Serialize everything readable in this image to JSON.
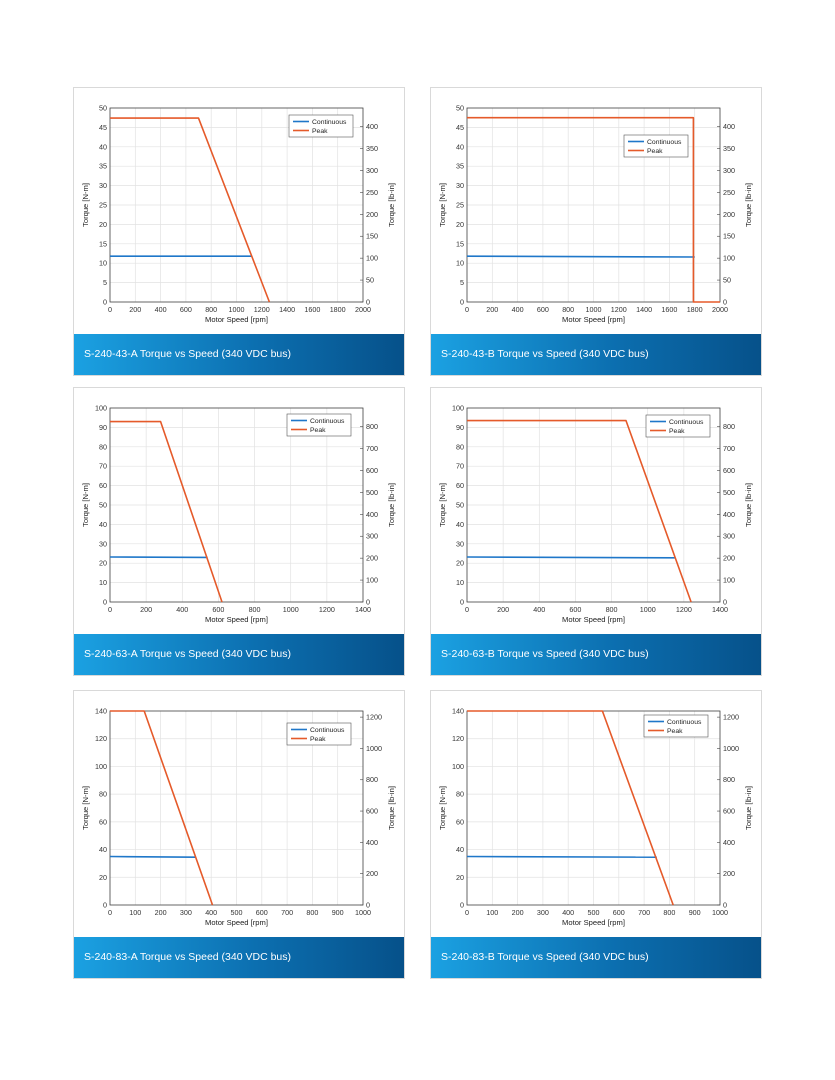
{
  "style": {
    "continuous_color": "#1f77c9",
    "peak_color": "#e55a2a",
    "grid_color": "#e2e2e2",
    "banner_from": "#1ba1e2",
    "banner_to": "#06518a"
  },
  "chart_data": [
    {
      "type": "line",
      "caption": "S-240-43-A Torque vs Speed (340 VDC bus)",
      "xlabel": "Motor Speed [rpm]",
      "ylabel": "Torque [N-m]",
      "y2label": "Torque [lb-in]",
      "xlim": [
        0,
        2000
      ],
      "xticks": [
        0,
        200,
        400,
        600,
        800,
        1000,
        1200,
        1400,
        1600,
        1800,
        2000
      ],
      "ylim": [
        0,
        50
      ],
      "yticks": [
        0,
        5,
        10,
        15,
        20,
        25,
        30,
        35,
        40,
        45,
        50
      ],
      "y2ticks": [
        0,
        50,
        100,
        150,
        200,
        250,
        300,
        350,
        400
      ],
      "y2ticklabels": [
        "0",
        "50",
        "100",
        "150",
        "200",
        "250",
        "300",
        "350",
        "400"
      ],
      "legend": "top-right",
      "grid": true,
      "series": [
        {
          "name": "Continuous",
          "x": [
            0,
            1120
          ],
          "y": [
            11.8,
            11.8
          ]
        },
        {
          "name": "Peak",
          "x": [
            0,
            700,
            1260
          ],
          "y": [
            47.4,
            47.4,
            0
          ]
        }
      ]
    },
    {
      "type": "line",
      "caption": "S-240-43-B Torque vs Speed (340 VDC bus)",
      "xlabel": "Motor Speed [rpm]",
      "ylabel": "Torque [N-m]",
      "y2label": "Torque [lb-in]",
      "xlim": [
        0,
        2000
      ],
      "xticks": [
        0,
        200,
        400,
        600,
        800,
        1000,
        1200,
        1400,
        1600,
        1800,
        2000
      ],
      "ylim": [
        0,
        50
      ],
      "yticks": [
        0,
        5,
        10,
        15,
        20,
        25,
        30,
        35,
        40,
        45,
        50
      ],
      "y2ticks": [
        0,
        50,
        100,
        150,
        200,
        250,
        300,
        350,
        400
      ],
      "y2ticklabels": [
        "0",
        "50",
        "100",
        "150",
        "200",
        "250",
        "300",
        "350",
        "400"
      ],
      "legend": "upper-right",
      "grid": true,
      "series": [
        {
          "name": "Continuous",
          "x": [
            0,
            1800
          ],
          "y": [
            11.8,
            11.6
          ]
        },
        {
          "name": "Peak",
          "x": [
            0,
            1790,
            1790,
            2000
          ],
          "y": [
            47.5,
            47.5,
            0,
            0
          ]
        }
      ]
    },
    {
      "type": "line",
      "caption": "S-240-63-A Torque vs Speed (340 VDC bus)",
      "xlabel": "Motor Speed [rpm]",
      "ylabel": "Torque [N-m]",
      "y2label": "Torque [lb-in]",
      "xlim": [
        0,
        1400
      ],
      "xticks": [
        0,
        200,
        400,
        600,
        800,
        1000,
        1200,
        1400
      ],
      "ylim": [
        0,
        100
      ],
      "yticks": [
        0,
        10,
        20,
        30,
        40,
        50,
        60,
        70,
        80,
        90,
        100
      ],
      "y2ticks": [
        0,
        100,
        200,
        300,
        400,
        500,
        600,
        700,
        800
      ],
      "y2ticklabels": [
        "0",
        "100",
        "200",
        "300",
        "400",
        "500",
        "600",
        "700",
        "800"
      ],
      "legend": "top-right",
      "grid": true,
      "series": [
        {
          "name": "Continuous",
          "x": [
            0,
            540
          ],
          "y": [
            23.2,
            23.0
          ]
        },
        {
          "name": "Peak",
          "x": [
            0,
            280,
            620
          ],
          "y": [
            93,
            93,
            0
          ]
        }
      ]
    },
    {
      "type": "line",
      "caption": "S-240-63-B Torque vs Speed (340 VDC bus)",
      "xlabel": "Motor Speed [rpm]",
      "ylabel": "Torque [N-m]",
      "y2label": "Torque [lb-in]",
      "xlim": [
        0,
        1400
      ],
      "xticks": [
        0,
        200,
        400,
        600,
        800,
        1000,
        1200,
        1400
      ],
      "ylim": [
        0,
        100
      ],
      "yticks": [
        0,
        10,
        20,
        30,
        40,
        50,
        60,
        70,
        80,
        90,
        100
      ],
      "y2ticks": [
        0,
        100,
        200,
        300,
        400,
        500,
        600,
        700,
        800
      ],
      "y2ticklabels": [
        "0",
        "100",
        "200",
        "300",
        "400",
        "500",
        "600",
        "700",
        "800"
      ],
      "legend": "top-right",
      "grid": true,
      "series": [
        {
          "name": "Continuous",
          "x": [
            0,
            1150
          ],
          "y": [
            23.2,
            22.8
          ]
        },
        {
          "name": "Peak",
          "x": [
            0,
            880,
            1240
          ],
          "y": [
            93.5,
            93.5,
            0
          ]
        }
      ]
    },
    {
      "type": "line",
      "caption": "S-240-83-A Torque vs Speed (340 VDC bus)",
      "xlabel": "Motor Speed [rpm]",
      "ylabel": "Torque [N-m]",
      "y2label": "Torque [lb-in]",
      "xlim": [
        0,
        1000
      ],
      "xticks": [
        0,
        100,
        200,
        300,
        400,
        500,
        600,
        700,
        800,
        900,
        1000
      ],
      "ylim": [
        0,
        140
      ],
      "yticks": [
        0,
        20,
        40,
        60,
        80,
        100,
        120,
        140
      ],
      "y2ticks": [
        0,
        200,
        400,
        600,
        800,
        1000,
        1200
      ],
      "y2ticklabels": [
        "0",
        "200",
        "400",
        "600",
        "800",
        "1000",
        "1200"
      ],
      "legend": "top-right",
      "grid": true,
      "series": [
        {
          "name": "Continuous",
          "x": [
            0,
            340
          ],
          "y": [
            35,
            34.5
          ]
        },
        {
          "name": "Peak",
          "x": [
            0,
            135,
            405
          ],
          "y": [
            140,
            140,
            0
          ]
        }
      ]
    },
    {
      "type": "line",
      "caption": "S-240-83-B Torque vs Speed (340 VDC bus)",
      "xlabel": "Motor Speed [rpm]",
      "ylabel": "Torque [N-m]",
      "y2label": "Torque [lb-in]",
      "xlim": [
        0,
        1000
      ],
      "xticks": [
        0,
        100,
        200,
        300,
        400,
        500,
        600,
        700,
        800,
        900,
        1000
      ],
      "ylim": [
        0,
        140
      ],
      "yticks": [
        0,
        20,
        40,
        60,
        80,
        100,
        120,
        140
      ],
      "y2ticks": [
        0,
        200,
        400,
        600,
        800,
        1000,
        1200
      ],
      "y2ticklabels": [
        "0",
        "200",
        "400",
        "600",
        "800",
        "1000",
        "1200"
      ],
      "legend": "top-right",
      "grid": true,
      "series": [
        {
          "name": "Continuous",
          "x": [
            0,
            750
          ],
          "y": [
            35,
            34.5
          ]
        },
        {
          "name": "Peak",
          "x": [
            0,
            535,
            815
          ],
          "y": [
            140,
            140,
            0
          ]
        }
      ]
    }
  ]
}
